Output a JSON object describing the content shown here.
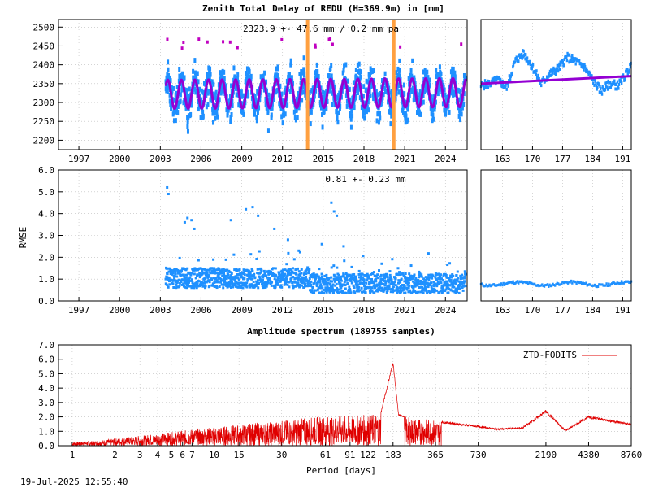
{
  "header": {
    "title": "Zenith Total Delay of REDU (H=369.9m) in [mm]",
    "timestamp": "19-Jul-2025 12:55:40"
  },
  "colors": {
    "data_blue": "#1e90ff",
    "model_purple": "#9400d3",
    "break_orange": "#ffa040",
    "spectrum_red": "#e00000",
    "outlier_magenta": "#c000c0"
  },
  "chart_data": [
    {
      "id": "ztd-main",
      "type": "scatter",
      "title": "Zenith Total Delay of REDU (H=369.9m) in [mm]",
      "annotation": "2323.9 +-  47.6 mm /  0.2 mm pa",
      "xlim": [
        1995.5,
        2025.6
      ],
      "ylim": [
        2175,
        2520
      ],
      "x_ticks": [
        "1997",
        "2000",
        "2003",
        "2006",
        "2009",
        "2012",
        "2015",
        "2018",
        "2021",
        "2024"
      ],
      "x_tick_values": [
        1997,
        2000,
        2003,
        2006,
        2009,
        2012,
        2015,
        2018,
        2021,
        2024
      ],
      "y_ticks": [
        "2200",
        "2250",
        "2300",
        "2350",
        "2400",
        "2450",
        "2500"
      ],
      "y_tick_values": [
        2200,
        2250,
        2300,
        2350,
        2400,
        2450,
        2500
      ],
      "data_start": 2003.4,
      "data_end": 2025.5,
      "model_mean": 2323.9,
      "seasonal_amplitude": 38,
      "trend_mm_per_year": 0.2,
      "scatter_spread": 75,
      "breaks": [
        2013.85,
        2020.2
      ],
      "grid": true
    },
    {
      "id": "ztd-recent",
      "type": "scatter",
      "xlim": [
        158,
        193
      ],
      "ylim": [
        2175,
        2520
      ],
      "x_ticks": [
        "163",
        "170",
        "177",
        "184",
        "191"
      ],
      "x_tick_values": [
        163,
        170,
        177,
        184,
        191
      ],
      "profile_x": [
        158,
        160,
        162,
        164,
        166,
        168,
        170,
        172,
        174,
        176,
        178,
        180,
        182,
        184,
        186,
        188,
        190,
        192,
        193
      ],
      "profile_y": [
        2345,
        2350,
        2360,
        2340,
        2410,
        2430,
        2395,
        2350,
        2375,
        2390,
        2420,
        2410,
        2395,
        2360,
        2330,
        2350,
        2345,
        2380,
        2400
      ],
      "fit_start": 2350,
      "fit_end": 2370,
      "grid": true
    },
    {
      "id": "rmse-main",
      "type": "scatter",
      "ylabel": "RMSE",
      "annotation": "0.81 +-  0.23 mm",
      "xlim": [
        1995.5,
        2025.6
      ],
      "ylim": [
        0,
        6
      ],
      "x_ticks": [
        "1997",
        "2000",
        "2003",
        "2006",
        "2009",
        "2012",
        "2015",
        "2018",
        "2021",
        "2024"
      ],
      "x_tick_values": [
        1997,
        2000,
        2003,
        2006,
        2009,
        2012,
        2015,
        2018,
        2021,
        2024
      ],
      "y_ticks": [
        "0.0",
        "1.0",
        "2.0",
        "3.0",
        "4.0",
        "5.0",
        "6.0"
      ],
      "y_tick_values": [
        0,
        1,
        2,
        3,
        4,
        5,
        6
      ],
      "data_start": 2003.4,
      "data_end": 2025.5,
      "mean": 0.81,
      "std": 0.23,
      "outliers_x": [
        2003.5,
        2003.6,
        2004.8,
        2005.0,
        2005.3,
        2005.5,
        2008.2,
        2009.3,
        2009.8,
        2010.2,
        2011.4,
        2012.4,
        2014.9,
        2015.6,
        2015.8,
        2016.0,
        2013.2,
        2016.5
      ],
      "outliers_y": [
        5.2,
        4.9,
        3.6,
        3.8,
        3.7,
        3.3,
        3.7,
        4.2,
        4.3,
        3.9,
        3.3,
        2.8,
        2.6,
        4.5,
        4.1,
        3.9,
        2.3,
        2.5
      ],
      "grid": true
    },
    {
      "id": "rmse-recent",
      "type": "scatter",
      "xlim": [
        158,
        193
      ],
      "ylim": [
        0,
        6
      ],
      "x_ticks": [
        "163",
        "170",
        "177",
        "184",
        "191"
      ],
      "x_tick_values": [
        163,
        170,
        177,
        184,
        191
      ],
      "level": 0.78,
      "grid": true
    },
    {
      "id": "spectrum",
      "type": "line",
      "title": "Amplitude spectrum (189755 samples)",
      "xlabel": "Period [days]",
      "xscale": "log",
      "xlim": [
        0.8,
        8760
      ],
      "ylim": [
        0,
        7
      ],
      "legend": "ZTD-FODITS",
      "legend_position": "top-right",
      "x_ticks": [
        "1",
        "2",
        "3",
        "4",
        "5",
        "6",
        "7",
        "10",
        "15",
        "30",
        "61",
        "91",
        "122",
        "183",
        "365",
        "730",
        "2190",
        "4380",
        "8760"
      ],
      "x_tick_values": [
        1,
        2,
        3,
        4,
        5,
        6,
        7,
        10,
        15,
        30,
        61,
        91,
        122,
        183,
        365,
        730,
        2190,
        4380,
        8760
      ],
      "y_ticks": [
        "0.0",
        "1.0",
        "2.0",
        "3.0",
        "4.0",
        "5.0",
        "6.0",
        "7.0"
      ],
      "y_tick_values": [
        0,
        1,
        2,
        3,
        4,
        5,
        6,
        7
      ],
      "envelope_x": [
        1,
        1.5,
        2,
        3,
        4,
        5,
        6,
        7,
        10,
        15,
        20,
        30,
        40,
        61,
        91,
        122,
        150,
        183,
        200,
        250,
        365,
        500,
        730,
        1000,
        1500,
        2190,
        3000,
        4380,
        8760
      ],
      "envelope_y": [
        0.25,
        0.35,
        0.5,
        0.7,
        0.85,
        0.95,
        1.05,
        1.15,
        1.3,
        1.45,
        1.6,
        1.75,
        1.9,
        2.05,
        2.1,
        2.15,
        2.3,
        5.9,
        2.2,
        1.9,
        1.8,
        1.6,
        1.4,
        1.2,
        1.3,
        2.5,
        1.1,
        2.1,
        1.55
      ],
      "grid": true
    }
  ]
}
